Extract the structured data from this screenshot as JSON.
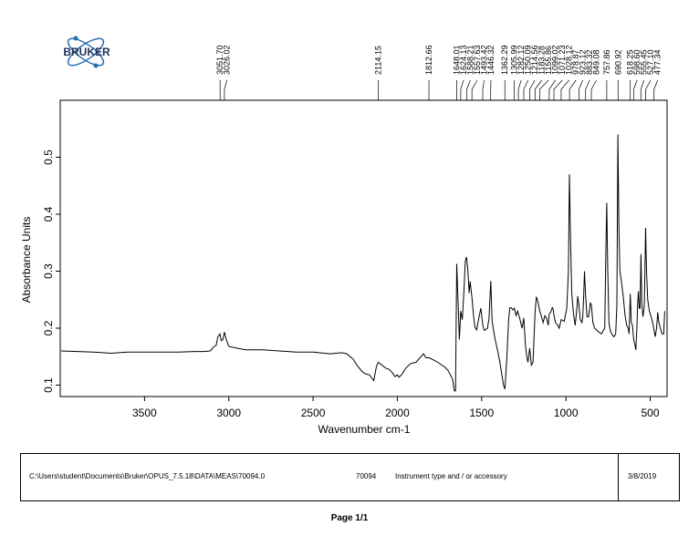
{
  "logo": {
    "text": "BRUKER"
  },
  "chart_data": {
    "type": "line",
    "title": "",
    "xlabel": "Wavenumber cm-1",
    "ylabel": "Absorbance Units",
    "xlim": [
      4000,
      400
    ],
    "ylim": [
      0.08,
      0.6
    ],
    "x_ticks": [
      3500,
      3000,
      2500,
      2000,
      1500,
      1000,
      500
    ],
    "y_ticks": [
      0.1,
      0.2,
      0.3,
      0.4,
      0.5
    ],
    "grid": false,
    "series": [
      {
        "points": [
          [
            3995,
            0.16
          ],
          [
            3900,
            0.159
          ],
          [
            3800,
            0.158
          ],
          [
            3700,
            0.156
          ],
          [
            3600,
            0.158
          ],
          [
            3500,
            0.158
          ],
          [
            3400,
            0.158
          ],
          [
            3300,
            0.158
          ],
          [
            3200,
            0.159
          ],
          [
            3150,
            0.159
          ],
          [
            3110,
            0.16
          ],
          [
            3090,
            0.167
          ],
          [
            3075,
            0.17
          ],
          [
            3065,
            0.185
          ],
          [
            3052,
            0.19
          ],
          [
            3045,
            0.178
          ],
          [
            3035,
            0.18
          ],
          [
            3026,
            0.193
          ],
          [
            3015,
            0.18
          ],
          [
            3000,
            0.168
          ],
          [
            2970,
            0.166
          ],
          [
            2900,
            0.162
          ],
          [
            2800,
            0.162
          ],
          [
            2700,
            0.16
          ],
          [
            2600,
            0.158
          ],
          [
            2500,
            0.158
          ],
          [
            2400,
            0.155
          ],
          [
            2330,
            0.157
          ],
          [
            2300,
            0.155
          ],
          [
            2260,
            0.145
          ],
          [
            2240,
            0.135
          ],
          [
            2210,
            0.124
          ],
          [
            2190,
            0.12
          ],
          [
            2165,
            0.118
          ],
          [
            2150,
            0.112
          ],
          [
            2140,
            0.108
          ],
          [
            2125,
            0.132
          ],
          [
            2114,
            0.14
          ],
          [
            2095,
            0.136
          ],
          [
            2070,
            0.13
          ],
          [
            2050,
            0.128
          ],
          [
            2030,
            0.122
          ],
          [
            2015,
            0.115
          ],
          [
            2000,
            0.118
          ],
          [
            1990,
            0.114
          ],
          [
            1970,
            0.12
          ],
          [
            1950,
            0.13
          ],
          [
            1920,
            0.138
          ],
          [
            1890,
            0.14
          ],
          [
            1860,
            0.15
          ],
          [
            1845,
            0.155
          ],
          [
            1830,
            0.148
          ],
          [
            1812,
            0.148
          ],
          [
            1790,
            0.145
          ],
          [
            1760,
            0.14
          ],
          [
            1740,
            0.136
          ],
          [
            1720,
            0.132
          ],
          [
            1700,
            0.126
          ],
          [
            1685,
            0.118
          ],
          [
            1672,
            0.11
          ],
          [
            1662,
            0.09
          ],
          [
            1655,
            0.09
          ],
          [
            1648,
            0.313
          ],
          [
            1640,
            0.25
          ],
          [
            1632,
            0.18
          ],
          [
            1624,
            0.23
          ],
          [
            1615,
            0.215
          ],
          [
            1605,
            0.265
          ],
          [
            1597,
            0.318
          ],
          [
            1590,
            0.325
          ],
          [
            1582,
            0.302
          ],
          [
            1574,
            0.262
          ],
          [
            1568,
            0.282
          ],
          [
            1558,
            0.255
          ],
          [
            1548,
            0.222
          ],
          [
            1540,
            0.202
          ],
          [
            1530,
            0.197
          ],
          [
            1515,
            0.22
          ],
          [
            1505,
            0.235
          ],
          [
            1493,
            0.205
          ],
          [
            1485,
            0.196
          ],
          [
            1475,
            0.198
          ],
          [
            1465,
            0.2
          ],
          [
            1456,
            0.218
          ],
          [
            1446,
            0.283
          ],
          [
            1438,
            0.212
          ],
          [
            1430,
            0.198
          ],
          [
            1420,
            0.18
          ],
          [
            1405,
            0.16
          ],
          [
            1392,
            0.14
          ],
          [
            1380,
            0.118
          ],
          [
            1370,
            0.1
          ],
          [
            1362,
            0.093
          ],
          [
            1350,
            0.15
          ],
          [
            1340,
            0.215
          ],
          [
            1333,
            0.236
          ],
          [
            1325,
            0.236
          ],
          [
            1315,
            0.232
          ],
          [
            1306,
            0.235
          ],
          [
            1296,
            0.222
          ],
          [
            1287,
            0.23
          ],
          [
            1282,
            0.225
          ],
          [
            1275,
            0.218
          ],
          [
            1260,
            0.2
          ],
          [
            1250,
            0.218
          ],
          [
            1240,
            0.17
          ],
          [
            1232,
            0.15
          ],
          [
            1225,
            0.14
          ],
          [
            1215,
            0.165
          ],
          [
            1205,
            0.135
          ],
          [
            1195,
            0.14
          ],
          [
            1183,
            0.23
          ],
          [
            1175,
            0.255
          ],
          [
            1165,
            0.245
          ],
          [
            1155,
            0.23
          ],
          [
            1145,
            0.22
          ],
          [
            1135,
            0.21
          ],
          [
            1125,
            0.222
          ],
          [
            1115,
            0.218
          ],
          [
            1105,
            0.205
          ],
          [
            1099,
            0.225
          ],
          [
            1090,
            0.228
          ],
          [
            1081,
            0.236
          ],
          [
            1075,
            0.233
          ],
          [
            1071,
            0.222
          ],
          [
            1062,
            0.21
          ],
          [
            1050,
            0.206
          ],
          [
            1040,
            0.2
          ],
          [
            1028,
            0.215
          ],
          [
            1010,
            0.212
          ],
          [
            995,
            0.235
          ],
          [
            985,
            0.3
          ],
          [
            979,
            0.47
          ],
          [
            972,
            0.35
          ],
          [
            965,
            0.26
          ],
          [
            955,
            0.225
          ],
          [
            945,
            0.205
          ],
          [
            935,
            0.235
          ],
          [
            930,
            0.256
          ],
          [
            923,
            0.24
          ],
          [
            915,
            0.215
          ],
          [
            905,
            0.21
          ],
          [
            900,
            0.22
          ],
          [
            895,
            0.255
          ],
          [
            890,
            0.3
          ],
          [
            883,
            0.255
          ],
          [
            875,
            0.22
          ],
          [
            866,
            0.22
          ],
          [
            860,
            0.232
          ],
          [
            855,
            0.245
          ],
          [
            849,
            0.24
          ],
          [
            840,
            0.21
          ],
          [
            830,
            0.2
          ],
          [
            815,
            0.196
          ],
          [
            800,
            0.192
          ],
          [
            790,
            0.19
          ],
          [
            780,
            0.195
          ],
          [
            770,
            0.2
          ],
          [
            763,
            0.33
          ],
          [
            758,
            0.42
          ],
          [
            752,
            0.3
          ],
          [
            745,
            0.21
          ],
          [
            737,
            0.196
          ],
          [
            725,
            0.188
          ],
          [
            715,
            0.185
          ],
          [
            705,
            0.19
          ],
          [
            698,
            0.24
          ],
          [
            692,
            0.54
          ],
          [
            686,
            0.38
          ],
          [
            680,
            0.3
          ],
          [
            670,
            0.28
          ],
          [
            660,
            0.255
          ],
          [
            650,
            0.225
          ],
          [
            640,
            0.205
          ],
          [
            630,
            0.2
          ],
          [
            625,
            0.19
          ],
          [
            618,
            0.26
          ],
          [
            612,
            0.21
          ],
          [
            605,
            0.205
          ],
          [
            598,
            0.18
          ],
          [
            590,
            0.17
          ],
          [
            585,
            0.162
          ],
          [
            580,
            0.196
          ],
          [
            575,
            0.24
          ],
          [
            570,
            0.265
          ],
          [
            565,
            0.235
          ],
          [
            560,
            0.235
          ],
          [
            555,
            0.33
          ],
          [
            550,
            0.245
          ],
          [
            543,
            0.22
          ],
          [
            535,
            0.24
          ],
          [
            527,
            0.376
          ],
          [
            522,
            0.3
          ],
          [
            515,
            0.25
          ],
          [
            505,
            0.23
          ],
          [
            495,
            0.22
          ],
          [
            485,
            0.21
          ],
          [
            477,
            0.196
          ],
          [
            470,
            0.185
          ],
          [
            462,
            0.2
          ],
          [
            455,
            0.228
          ],
          [
            450,
            0.212
          ],
          [
            440,
            0.2
          ],
          [
            430,
            0.19
          ],
          [
            420,
            0.19
          ],
          [
            414,
            0.23
          ]
        ]
      }
    ],
    "peak_labels": [
      "3051.70",
      "3026.02",
      "2114.15",
      "1812.66",
      "1648.01",
      "1624.13",
      "1588.21",
      "1557.63",
      "1493.42",
      "1446.32",
      "1362.29",
      "1305.99",
      "1282.12",
      "1250.09",
      "1214.56",
      "1183.28",
      "1155.86",
      "1099.02",
      "1071.23",
      "1028.12",
      "978.87",
      "923.12",
      "883.32",
      "849.08",
      "757.86",
      "690.92",
      "618.25",
      "598.60",
      "555.45",
      "527.10",
      "477.34"
    ],
    "peak_positions": [
      3051.7,
      3026.02,
      2114.15,
      1812.66,
      1648.01,
      1624.13,
      1588.21,
      1557.63,
      1493.42,
      1446.32,
      1362.29,
      1305.99,
      1282.12,
      1250.09,
      1214.56,
      1183.28,
      1155.86,
      1099.02,
      1071.23,
      1028.12,
      978.87,
      923.12,
      883.32,
      849.08,
      757.86,
      690.92,
      618.25,
      598.6,
      555.45,
      527.1,
      477.34
    ]
  },
  "footer": {
    "path": "C:\\Users\\student\\Documents\\Bruker\\OPUS_7.5.18\\DATA\\MEAS\\70094.0",
    "sample": "70094",
    "instrument": "Instrument type and / or accessory",
    "date": "3/8/2019"
  },
  "page_label": "Page 1/1"
}
